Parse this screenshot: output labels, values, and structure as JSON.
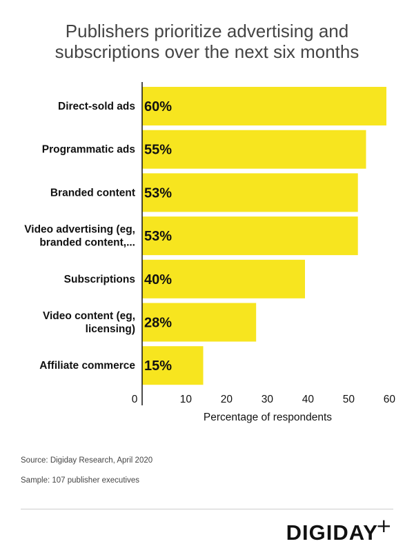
{
  "title_lines": [
    "Publishers prioritize advertising and",
    "subscriptions over the next six months"
  ],
  "chart_data": {
    "type": "bar",
    "orientation": "horizontal",
    "categories": [
      [
        "Direct-sold ads"
      ],
      [
        "Programmatic ads"
      ],
      [
        "Branded content"
      ],
      [
        "Video advertising (eg,",
        "branded content,..."
      ],
      [
        "Subscriptions"
      ],
      [
        "Video content (eg,",
        "licensing)"
      ],
      [
        "Affiliate commerce"
      ]
    ],
    "values": [
      60,
      55,
      53,
      53,
      40,
      28,
      15
    ],
    "value_labels": [
      "60%",
      "55%",
      "53%",
      "53%",
      "40%",
      "28%",
      "15%"
    ],
    "xlabel": "Percentage of respondents",
    "ylabel": "",
    "xlim": [
      0,
      60
    ],
    "xticks": [
      0,
      10,
      20,
      30,
      40,
      50,
      60
    ],
    "bar_color": "#f7e51f"
  },
  "source": "Source: Digiday Research, April 2020",
  "sample": "Sample: 107 publisher executives",
  "logo": {
    "text": "DIGIDAY",
    "plus": "+"
  }
}
